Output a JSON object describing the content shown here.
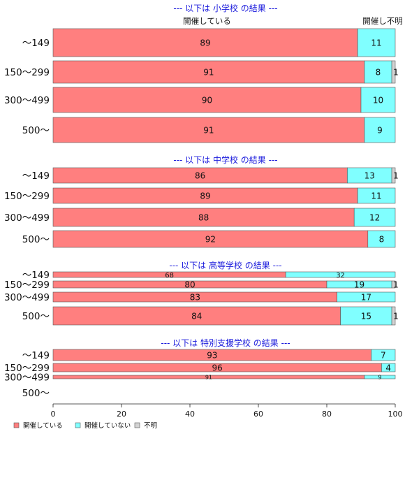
{
  "chart_data": {
    "type": "bar",
    "orientation": "horizontal",
    "stacked": true,
    "colors": {
      "held": "#ff7f7f",
      "not_held": "#80ffff",
      "unknown": "#d3d3d3"
    },
    "column_headers": {
      "held": "開催している",
      "not_held_unknown": "開催し不明"
    },
    "legend": {
      "placement": "bottom-left",
      "items": [
        "開催している",
        "開催していない",
        "不明"
      ]
    },
    "x_ticks": [
      "0",
      "20",
      "40",
      "60",
      "80",
      "100"
    ],
    "xlim": [
      0,
      100
    ],
    "grid": false,
    "sections": [
      {
        "title": "--- 以下は 小学校 の結果 ---",
        "categories": [
          "～149",
          "150～299",
          "300～499",
          "500～"
        ],
        "series": [
          {
            "name": "開催している",
            "values": [
              89,
              91,
              90,
              91
            ]
          },
          {
            "name": "開催していない",
            "values": [
              11,
              8,
              10,
              9
            ]
          },
          {
            "name": "不明",
            "values": [
              0,
              1,
              0,
              0
            ]
          }
        ]
      },
      {
        "title": "--- 以下は 中学校 の結果 ---",
        "categories": [
          "～149",
          "150～299",
          "300～499",
          "500～"
        ],
        "series": [
          {
            "name": "開催している",
            "values": [
              86,
              89,
              88,
              92
            ]
          },
          {
            "name": "開催していない",
            "values": [
              13,
              11,
              12,
              8
            ]
          },
          {
            "name": "不明",
            "values": [
              1,
              0,
              0,
              0
            ]
          }
        ]
      },
      {
        "title": "--- 以下は 高等学校 の結果 ---",
        "categories": [
          "～149",
          "150～299",
          "300～499",
          "500～"
        ],
        "series": [
          {
            "name": "開催している",
            "values": [
              68,
              80,
              83,
              84
            ]
          },
          {
            "name": "開催していない",
            "values": [
              32,
              19,
              17,
              15
            ]
          },
          {
            "name": "不明",
            "values": [
              0,
              1,
              0,
              1
            ]
          }
        ]
      },
      {
        "title": "--- 以下は 特別支援学校 の結果 ---",
        "categories": [
          "～149",
          "150～299",
          "300～499",
          "500～"
        ],
        "series": [
          {
            "name": "開催している",
            "values": [
              93,
              96,
              91,
              null
            ]
          },
          {
            "name": "開催していない",
            "values": [
              7,
              4,
              9,
              null
            ]
          },
          {
            "name": "不明",
            "values": [
              0,
              0,
              0,
              null
            ]
          }
        ]
      }
    ]
  }
}
